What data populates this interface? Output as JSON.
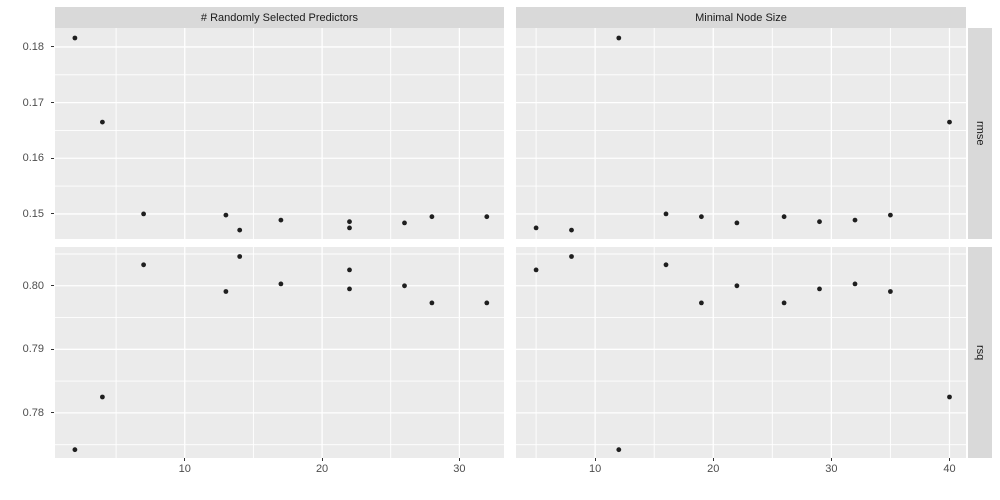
{
  "figure_title": "",
  "facets": {
    "col_labels": [
      "# Randomly Selected Predictors",
      "Minimal Node Size"
    ],
    "row_labels": [
      "rmse",
      "rsq"
    ]
  },
  "colors": {
    "panel_background": "#EBEBEB",
    "strip_background": "#D9D9D9",
    "gridline": "#FFFFFF",
    "point": "#1F1F1F",
    "axis_text": "#4D4D4D",
    "tick_mark": "#333333",
    "strip_text": "#1A1A1A",
    "figure_background": "#FFFFFF"
  },
  "chart_data": {
    "type": "scatter",
    "layout": "facet_grid 2 rows (metrics: rmse, rsq) x 2 cols (tuning parameters)",
    "grid": "on",
    "legend": "none",
    "x_axes": [
      {
        "col_label": "# Randomly Selected Predictors",
        "lim": [
          0.55,
          33.25
        ],
        "major": [
          10,
          20,
          30
        ],
        "minor": [
          5,
          15,
          25
        ],
        "tick_labels": [
          "10",
          "20",
          "30"
        ]
      },
      {
        "col_label": "Minimal Node Size",
        "lim": [
          3.3,
          41.4
        ],
        "major": [
          10,
          20,
          30,
          40
        ],
        "minor": [
          5,
          15,
          25,
          35
        ],
        "tick_labels": [
          "10",
          "20",
          "30",
          "40"
        ]
      }
    ],
    "y_axes": [
      {
        "row_label": "rmse",
        "lim": [
          0.1455,
          0.1834
        ],
        "major": [
          0.18,
          0.17,
          0.16,
          0.15
        ],
        "minor": [
          0.175,
          0.165,
          0.155
        ],
        "tick_labels": [
          "0.18",
          "0.17",
          "0.16",
          "0.15"
        ]
      },
      {
        "row_label": "rsq",
        "lim": [
          0.7729,
          0.8061
        ],
        "major": [
          0.8,
          0.79,
          0.78
        ],
        "minor": [
          0.805,
          0.795,
          0.785,
          0.775
        ],
        "tick_labels": [
          "0.80",
          "0.79",
          "0.78"
        ]
      }
    ],
    "panels": [
      {
        "id": "rmse-mtry",
        "row": 0,
        "col": 0,
        "points": [
          [
            2,
            0.1816
          ],
          [
            4,
            0.1665
          ],
          [
            7,
            0.15
          ],
          [
            13,
            0.1498
          ],
          [
            14,
            0.1471
          ],
          [
            17,
            0.1489
          ],
          [
            22,
            0.1475
          ],
          [
            22,
            0.1486
          ],
          [
            26,
            0.1484
          ],
          [
            28,
            0.1495
          ],
          [
            32,
            0.1495
          ]
        ]
      },
      {
        "id": "rmse-minn",
        "row": 0,
        "col": 1,
        "points": [
          [
            12,
            0.1816
          ],
          [
            40,
            0.1665
          ],
          [
            16,
            0.15
          ],
          [
            35,
            0.1498
          ],
          [
            8,
            0.1471
          ],
          [
            32,
            0.1489
          ],
          [
            5,
            0.1475
          ],
          [
            29,
            0.1486
          ],
          [
            22,
            0.1484
          ],
          [
            19,
            0.1495
          ],
          [
            26,
            0.1495
          ]
        ]
      },
      {
        "id": "rsq-mtry",
        "row": 1,
        "col": 0,
        "points": [
          [
            2,
            0.7742
          ],
          [
            4,
            0.7825
          ],
          [
            7,
            0.8033
          ],
          [
            13,
            0.7991
          ],
          [
            14,
            0.8046
          ],
          [
            17,
            0.8003
          ],
          [
            22,
            0.8025
          ],
          [
            22,
            0.7995
          ],
          [
            26,
            0.8
          ],
          [
            28,
            0.7973
          ],
          [
            32,
            0.7973
          ]
        ]
      },
      {
        "id": "rsq-minn",
        "row": 1,
        "col": 1,
        "points": [
          [
            12,
            0.7742
          ],
          [
            40,
            0.7825
          ],
          [
            16,
            0.8033
          ],
          [
            35,
            0.7991
          ],
          [
            8,
            0.8046
          ],
          [
            32,
            0.8003
          ],
          [
            5,
            0.8025
          ],
          [
            29,
            0.7995
          ],
          [
            22,
            0.8
          ],
          [
            19,
            0.7973
          ],
          [
            26,
            0.7973
          ]
        ]
      }
    ],
    "series_records": [
      {
        "mtry": 2,
        "min_n": 12,
        "rmse": 0.1816,
        "rsq": 0.7742
      },
      {
        "mtry": 4,
        "min_n": 40,
        "rmse": 0.1665,
        "rsq": 0.7825
      },
      {
        "mtry": 7,
        "min_n": 16,
        "rmse": 0.15,
        "rsq": 0.8033
      },
      {
        "mtry": 13,
        "min_n": 35,
        "rmse": 0.1498,
        "rsq": 0.7991
      },
      {
        "mtry": 14,
        "min_n": 8,
        "rmse": 0.1471,
        "rsq": 0.8046
      },
      {
        "mtry": 17,
        "min_n": 32,
        "rmse": 0.1489,
        "rsq": 0.8003
      },
      {
        "mtry": 22,
        "min_n": 5,
        "rmse": 0.1475,
        "rsq": 0.8025
      },
      {
        "mtry": 22,
        "min_n": 29,
        "rmse": 0.1486,
        "rsq": 0.7995
      },
      {
        "mtry": 26,
        "min_n": 22,
        "rmse": 0.1484,
        "rsq": 0.8
      },
      {
        "mtry": 28,
        "min_n": 19,
        "rmse": 0.1495,
        "rsq": 0.7973
      },
      {
        "mtry": 32,
        "min_n": 26,
        "rmse": 0.1495,
        "rsq": 0.7973
      }
    ]
  }
}
